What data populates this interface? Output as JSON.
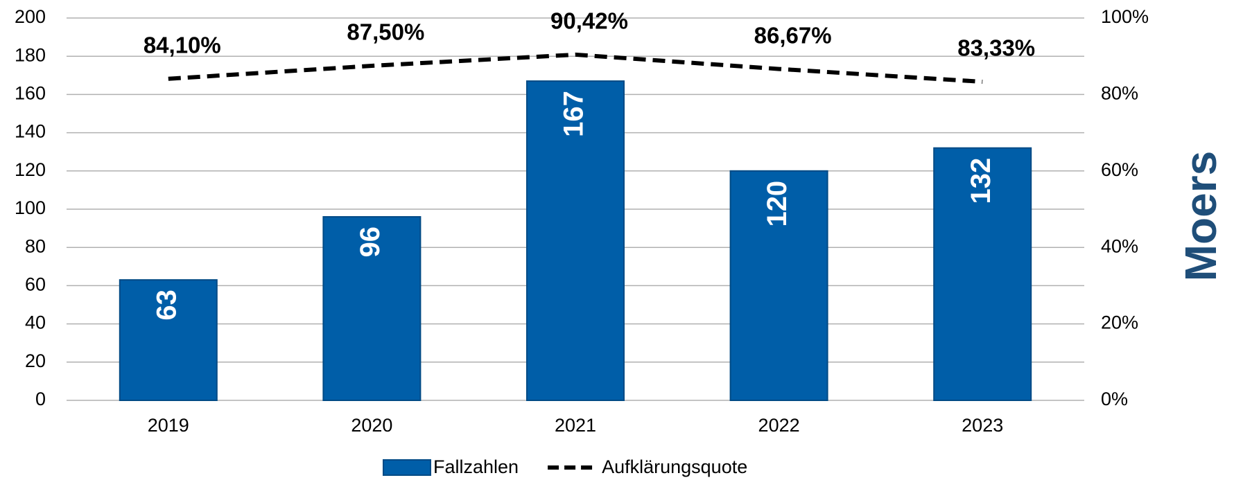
{
  "chart_data": {
    "type": "bar_line",
    "side_label": "Moers",
    "categories": [
      "2019",
      "2020",
      "2021",
      "2022",
      "2023"
    ],
    "series": [
      {
        "name": "Fallzahlen",
        "type": "bar",
        "color": "#005ea8",
        "values": [
          63,
          96,
          167,
          120,
          132
        ]
      },
      {
        "name": "Aufklärungsquote",
        "type": "line",
        "color": "#000000",
        "axis": "y2",
        "dashed": true,
        "values": [
          84.1,
          87.5,
          90.42,
          86.67,
          83.33
        ],
        "value_labels": [
          "84,10%",
          "87,50%",
          "90,42%",
          "86,67%",
          "83,33%"
        ]
      }
    ],
    "ylim": [
      0,
      200
    ],
    "yticks": [
      0,
      20,
      40,
      60,
      80,
      100,
      120,
      140,
      160,
      180,
      200
    ],
    "y2lim": [
      0,
      100
    ],
    "y2ticks": [
      {
        "value": 0,
        "label": "0%"
      },
      {
        "value": 20,
        "label": "20%"
      },
      {
        "value": 40,
        "label": "40%"
      },
      {
        "value": 60,
        "label": "60%"
      },
      {
        "value": 80,
        "label": "80%"
      },
      {
        "value": 100,
        "label": "100%"
      }
    ],
    "grid": true,
    "legend": "bottom"
  }
}
